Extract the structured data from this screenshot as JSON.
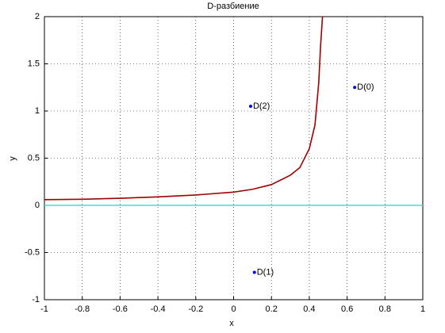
{
  "chart_data": {
    "type": "line",
    "title": "D-разбиение",
    "xlabel": "x",
    "ylabel": "y",
    "xlim": [
      -1,
      1
    ],
    "ylim": [
      -1,
      2
    ],
    "xticks": [
      -1,
      -0.8,
      -0.6,
      -0.4,
      -0.2,
      0,
      0.2,
      0.4,
      0.6,
      0.8,
      1
    ],
    "yticks": [
      -1,
      -0.5,
      0,
      0.5,
      1,
      1.5,
      2
    ],
    "grid": true,
    "series": [
      {
        "color": "#a00000",
        "x": [
          -1,
          -0.8,
          -0.6,
          -0.4,
          -0.2,
          0,
          0.1,
          0.2,
          0.3,
          0.35,
          0.4,
          0.43,
          0.45,
          0.46,
          0.47
        ],
        "values": [
          0.06,
          0.065,
          0.075,
          0.09,
          0.11,
          0.14,
          0.17,
          0.22,
          0.32,
          0.4,
          0.6,
          0.85,
          1.3,
          1.7,
          2.0
        ]
      },
      {
        "color": "#40e0d0",
        "x": [
          -1,
          1
        ],
        "values": [
          0,
          0
        ]
      }
    ],
    "points": [
      {
        "x": 0.64,
        "y": 1.25,
        "label": "D(0)"
      },
      {
        "x": 0.11,
        "y": -0.71,
        "label": "D(1)"
      },
      {
        "x": 0.09,
        "y": 1.05,
        "label": "D(2)"
      }
    ],
    "point_color": "#0000ff"
  }
}
